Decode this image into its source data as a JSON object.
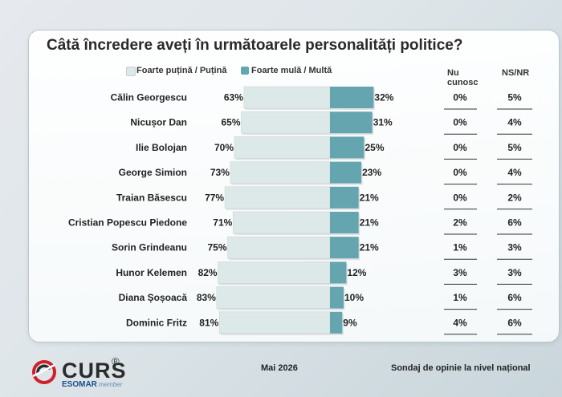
{
  "chart_data": {
    "type": "bar",
    "title": "Câtă încredere aveți în următoarele personalități politice?",
    "categories": [
      "Călin Georgescu",
      "Nicușor Dan",
      "Ilie Bolojan",
      "George Simion",
      "Traian Băsescu",
      "Cristian Popescu Piedone",
      "Sorin Grindeanu",
      "Hunor Kelemen",
      "Diana Șoșoacă",
      "Dominic Fritz"
    ],
    "series": [
      {
        "name": "Foarte puțină / Puțină",
        "values": [
          63,
          65,
          70,
          73,
          77,
          71,
          75,
          82,
          83,
          81
        ]
      },
      {
        "name": "Foarte mulă / Multă",
        "values": [
          32,
          31,
          25,
          23,
          21,
          21,
          21,
          12,
          10,
          9
        ]
      },
      {
        "name": "Nu cunosc",
        "values": [
          0,
          0,
          0,
          0,
          0,
          2,
          1,
          3,
          1,
          4
        ]
      },
      {
        "name": "NS/NR",
        "values": [
          5,
          4,
          5,
          4,
          2,
          6,
          3,
          3,
          6,
          6
        ]
      }
    ],
    "legend_position": "top",
    "colors": {
      "low": "#dde9e8",
      "high": "#64a5b0"
    }
  },
  "legend": {
    "low": "Foarte puțină / Puțină",
    "high": "Foarte mulă / Multă"
  },
  "columns": {
    "nu_cunosc_line1": "Nu",
    "nu_cunosc_line2": "cunosc",
    "nsnr": "NS/NR"
  },
  "footer": {
    "logo": "CURS",
    "esomar": "ESOMAR",
    "esomar_member": "member",
    "date": "Mai 2026",
    "source": "Sondaj de opinie la nivel național"
  }
}
